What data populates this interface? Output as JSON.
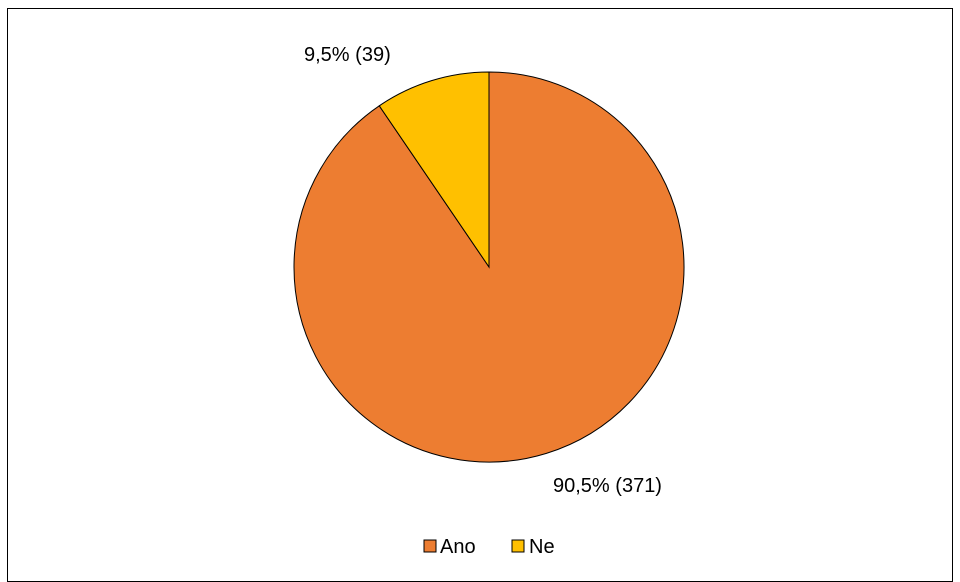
{
  "chart_data": {
    "type": "pie",
    "title": "",
    "slices": [
      {
        "label": "Ano",
        "value": 371,
        "percent_text": "90,5%",
        "count_text": "(371)",
        "color": "#ED7D31"
      },
      {
        "label": "Ne",
        "value": 39,
        "percent_text": "9,5%",
        "count_text": "(39)",
        "color": "#FFC000"
      }
    ],
    "start": "top (12 o'clock)",
    "direction": "clockwise",
    "slice_outline_color": "#000000",
    "legend_position": "bottom"
  }
}
